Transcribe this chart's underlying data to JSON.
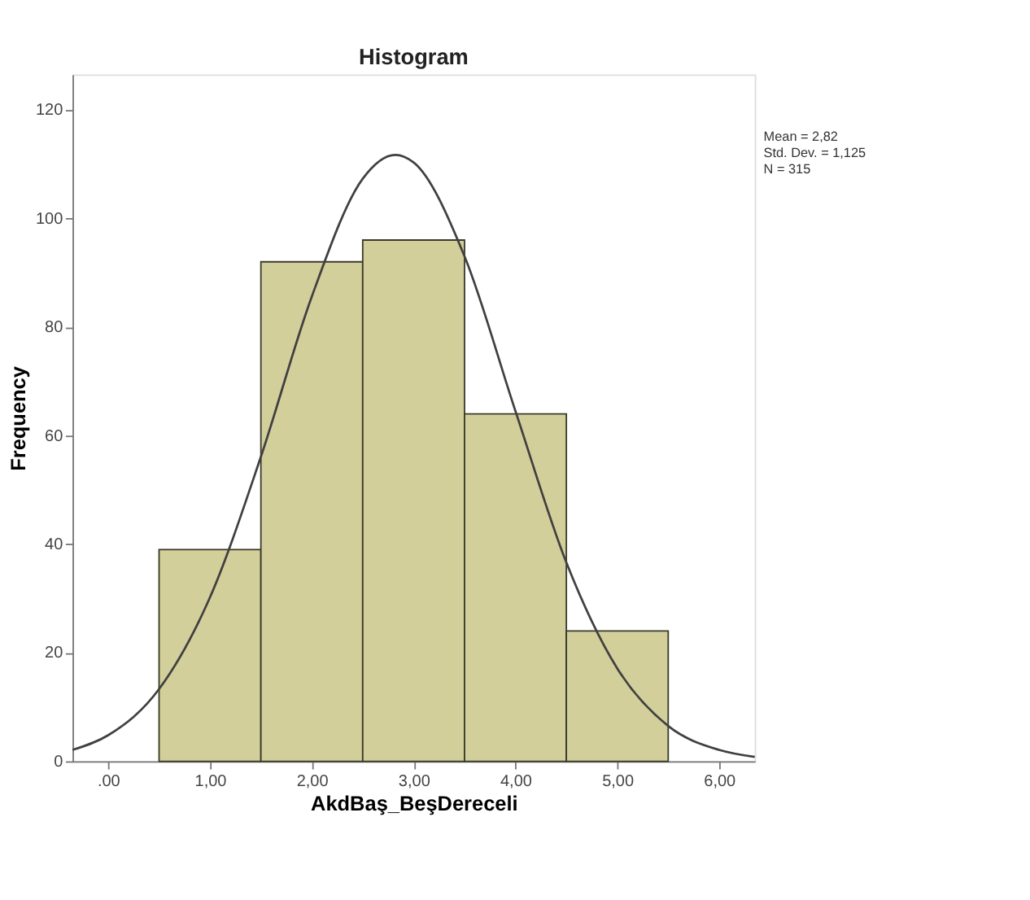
{
  "chart_data": {
    "type": "histogram",
    "title": "Histogram",
    "xlabel": "AkdBaş_BeşDereceli",
    "ylabel": "Frequency",
    "bins": [
      0.5,
      1.5,
      2.5,
      3.5,
      4.5,
      5.5
    ],
    "values": [
      39,
      92,
      96,
      64,
      24
    ],
    "color": "#d3cf9b",
    "series": [
      {
        "type": "line",
        "color": "#404040",
        "x": [
          -0.35,
          0,
          0.5,
          1,
          1.5,
          2,
          2.5,
          2.82,
          3,
          3.5,
          4,
          4.5,
          5,
          5.5,
          6,
          6.35
        ],
        "values": [
          2.1,
          4.8,
          13.3,
          30.2,
          56.1,
          85.6,
          107.3,
          111.7,
          110.3,
          93.0,
          64.5,
          36.6,
          17.1,
          6.5,
          2.1,
          0.8
        ]
      }
    ],
    "xlim": [
      -0.35,
      6.35
    ],
    "xticks": [
      {
        "value": 0,
        "label": ".00"
      },
      {
        "value": 1,
        "label": "1,00"
      },
      {
        "value": 2,
        "label": "2,00"
      },
      {
        "value": 3,
        "label": "3,00"
      },
      {
        "value": 4,
        "label": "4,00"
      },
      {
        "value": 5,
        "label": "5,00"
      },
      {
        "value": 6,
        "label": "6,00"
      }
    ],
    "ylim": [
      0,
      126.5
    ],
    "yticks": [
      0,
      20,
      40,
      60,
      80,
      100,
      120
    ],
    "annotations": [
      "Mean = 2,82",
      "Std. Dev. = 1,125",
      "N = 315"
    ],
    "grid": false,
    "line_style": "solid",
    "marker": "none"
  }
}
